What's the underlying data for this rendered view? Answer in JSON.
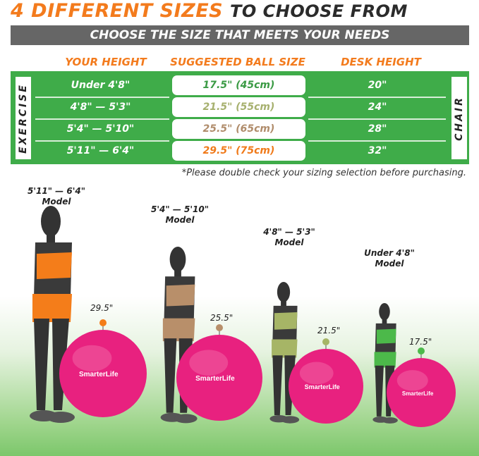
{
  "title": {
    "part1": "4 DIFFERENT SIZES",
    "part2": "TO CHOOSE FROM"
  },
  "subtitle": "CHOOSE THE SIZE THAT MEETS YOUR NEEDS",
  "headers": [
    "YOUR HEIGHT",
    "SUGGESTED BALL SIZE",
    "DESK HEIGHT"
  ],
  "side_labels": {
    "left": "EXERCISE",
    "right": "CHAIR"
  },
  "rows": [
    {
      "height": "Under 4'8\"",
      "ball": "17.5\" (45cm)",
      "desk": "20\"",
      "color": "#3a9a44"
    },
    {
      "height": "4'8\" — 5'3\"",
      "ball": "21.5\" (55cm)",
      "desk": "24\"",
      "color": "#a6b06e"
    },
    {
      "height": "5'4\" — 5'10\"",
      "ball": "25.5\" (65cm)",
      "desk": "28\"",
      "color": "#b08c6b"
    },
    {
      "height": "5'11\" — 6'4\"",
      "ball": "29.5\" (75cm)",
      "desk": "32\"",
      "color": "#f07a1a"
    }
  ],
  "note": "*Please double check your sizing selection before purchasing.",
  "models": [
    {
      "range": "5'11\" — 6'4\"",
      "label": "Model",
      "ball": "29.5\"",
      "top_color": "#f47d1a"
    },
    {
      "range": "5'4\" — 5'10\"",
      "label": "Model",
      "ball": "25.5\"",
      "top_color": "#b88f6a"
    },
    {
      "range": "4'8\" — 5'3\"",
      "label": "Model",
      "ball": "21.5\"",
      "top_color": "#a6b566"
    },
    {
      "range": "Under 4'8\"",
      "label": "Model",
      "ball": "17.5\"",
      "top_color": "#4cb94a"
    }
  ],
  "brand": "SmarterLife",
  "colors": {
    "orange": "#f37b1d",
    "green": "#3fac49",
    "gray": "#666666",
    "ball_pink": "#e8217f"
  }
}
